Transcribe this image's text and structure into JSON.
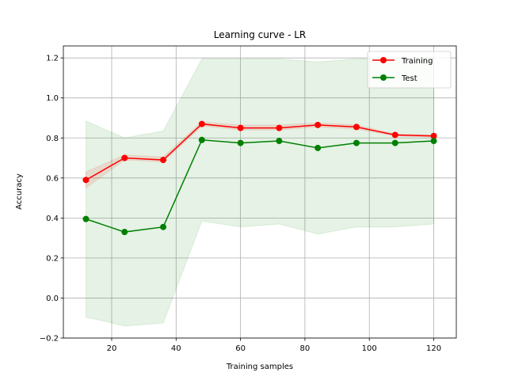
{
  "chart_data": {
    "type": "line",
    "title": "Learning curve - LR",
    "xlabel": "Training samples",
    "ylabel": "Accuracy",
    "xlim": [
      5,
      127
    ],
    "ylim": [
      -0.2,
      1.26
    ],
    "xticks": [
      20,
      40,
      60,
      80,
      100,
      120
    ],
    "yticks": [
      -0.2,
      0.0,
      0.2,
      0.4,
      0.6,
      0.8,
      1.0,
      1.2
    ],
    "x": [
      12,
      24,
      36,
      48,
      60,
      72,
      84,
      96,
      108,
      120
    ],
    "grid": true,
    "legend_position": "top-right",
    "series": [
      {
        "name": "Training",
        "color": "#ff0000",
        "marker": "circle",
        "values": [
          0.59,
          0.7,
          0.69,
          0.87,
          0.85,
          0.85,
          0.865,
          0.855,
          0.815,
          0.81
        ],
        "band_lower": [
          0.55,
          0.69,
          0.68,
          0.86,
          0.84,
          0.84,
          0.855,
          0.845,
          0.81,
          0.805
        ],
        "band_upper": [
          0.63,
          0.715,
          0.705,
          0.88,
          0.865,
          0.865,
          0.875,
          0.865,
          0.82,
          0.815
        ],
        "band_color": "#ff0000"
      },
      {
        "name": "Test",
        "color": "#008000",
        "marker": "circle",
        "values": [
          0.395,
          0.33,
          0.355,
          0.79,
          0.775,
          0.785,
          0.75,
          0.775,
          0.775,
          0.785
        ],
        "band_lower": [
          -0.095,
          -0.14,
          -0.125,
          0.385,
          0.355,
          0.37,
          0.32,
          0.355,
          0.355,
          0.37
        ],
        "band_upper": [
          0.885,
          0.8,
          0.835,
          1.195,
          1.195,
          1.195,
          1.18,
          1.195,
          1.195,
          1.2
        ],
        "band_color": "#008000"
      }
    ]
  }
}
